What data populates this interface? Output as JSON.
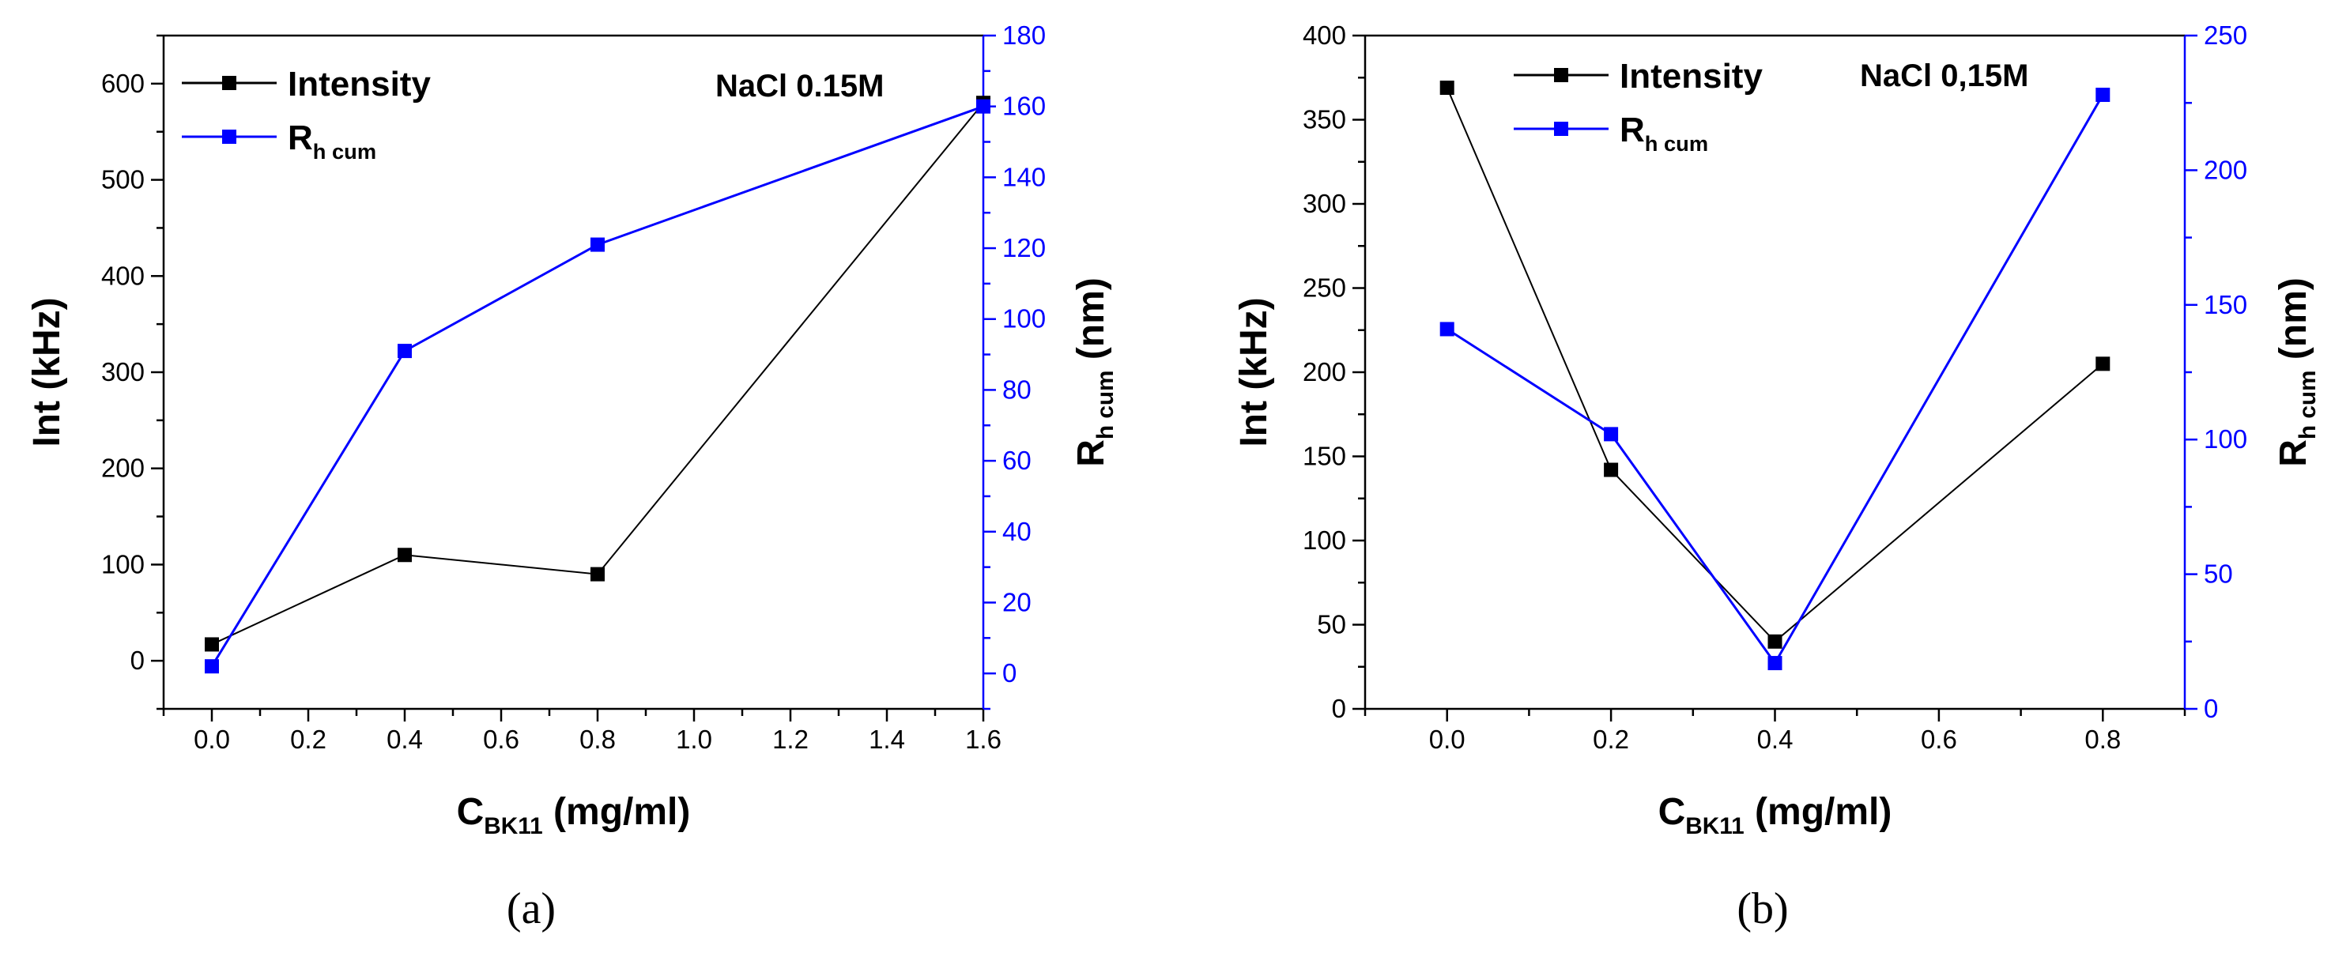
{
  "chart_data": [
    {
      "id": "a",
      "type": "line",
      "panel_label": "(a)",
      "annotation": "NaCl 0.15M",
      "xlabel": {
        "main": "C",
        "sub": "BK11",
        "rest": " (mg/ml)"
      },
      "ylabel_left": "Int (kHz)",
      "ylabel_right": {
        "main": "R",
        "sub": "h cum",
        "rest": " (nm)"
      },
      "xlim": [
        -0.1,
        1.6
      ],
      "xticks": [
        0.0,
        0.2,
        0.4,
        0.6,
        0.8,
        1.0,
        1.2,
        1.4,
        1.6
      ],
      "xtick_labels": [
        "0.0",
        "0.2",
        "0.4",
        "0.6",
        "0.8",
        "1.0",
        "1.2",
        "1.4",
        "1.6"
      ],
      "ylim_left": [
        -50,
        650
      ],
      "yticks_left": [
        0,
        100,
        200,
        300,
        400,
        500,
        600
      ],
      "ytick_labels_left": [
        "0",
        "100",
        "200",
        "300",
        "400",
        "500",
        "600"
      ],
      "ylim_right": [
        -10,
        180
      ],
      "yticks_right": [
        0,
        20,
        40,
        60,
        80,
        100,
        120,
        140,
        160,
        180
      ],
      "ytick_labels_right": [
        "0",
        "20",
        "40",
        "60",
        "80",
        "100",
        "120",
        "140",
        "160",
        "180"
      ],
      "legend": [
        {
          "main": "Intensity",
          "sub": "",
          "color": "#000000"
        },
        {
          "main": "R",
          "sub": "h cum",
          "color": "#0000ff"
        }
      ],
      "series": [
        {
          "name": "Intensity",
          "axis": "left",
          "color": "#000000",
          "x": [
            0.0,
            0.4,
            0.8,
            1.6
          ],
          "y": [
            17,
            110,
            90,
            580
          ]
        },
        {
          "name": "Rh cum",
          "axis": "right",
          "color": "#0000ff",
          "x": [
            0.0,
            0.4,
            0.8,
            1.6
          ],
          "y": [
            2,
            91,
            121,
            160
          ]
        }
      ]
    },
    {
      "id": "b",
      "type": "line",
      "panel_label": "(b)",
      "annotation": "NaCl 0,15M",
      "xlabel": {
        "main": "C",
        "sub": "BK11",
        "rest": " (mg/ml)"
      },
      "ylabel_left": "Int (kHz)",
      "ylabel_right": {
        "main": "R",
        "sub": "h cum",
        "rest": " (nm)"
      },
      "xlim": [
        -0.1,
        0.9
      ],
      "xticks": [
        0.0,
        0.2,
        0.4,
        0.6,
        0.8
      ],
      "xtick_labels": [
        "0.0",
        "0.2",
        "0.4",
        "0.6",
        "0.8"
      ],
      "ylim_left": [
        0,
        400
      ],
      "yticks_left": [
        0,
        50,
        100,
        150,
        200,
        250,
        300,
        350,
        400
      ],
      "ytick_labels_left": [
        "0",
        "50",
        "100",
        "150",
        "200",
        "250",
        "300",
        "350",
        "400"
      ],
      "ylim_right": [
        0,
        250
      ],
      "yticks_right": [
        0,
        50,
        100,
        150,
        200,
        250
      ],
      "ytick_labels_right": [
        "0",
        "50",
        "100",
        "150",
        "200",
        "250"
      ],
      "legend": [
        {
          "main": "Intensity",
          "sub": "",
          "color": "#000000"
        },
        {
          "main": "R",
          "sub": "h cum",
          "color": "#0000ff"
        }
      ],
      "series": [
        {
          "name": "Intensity",
          "axis": "left",
          "color": "#000000",
          "x": [
            0.0,
            0.2,
            0.4,
            0.8
          ],
          "y": [
            369,
            142,
            40,
            205
          ]
        },
        {
          "name": "Rh cum",
          "axis": "right",
          "color": "#0000ff",
          "x": [
            0.0,
            0.2,
            0.4,
            0.8
          ],
          "y": [
            141,
            102,
            17,
            228
          ]
        }
      ]
    }
  ]
}
